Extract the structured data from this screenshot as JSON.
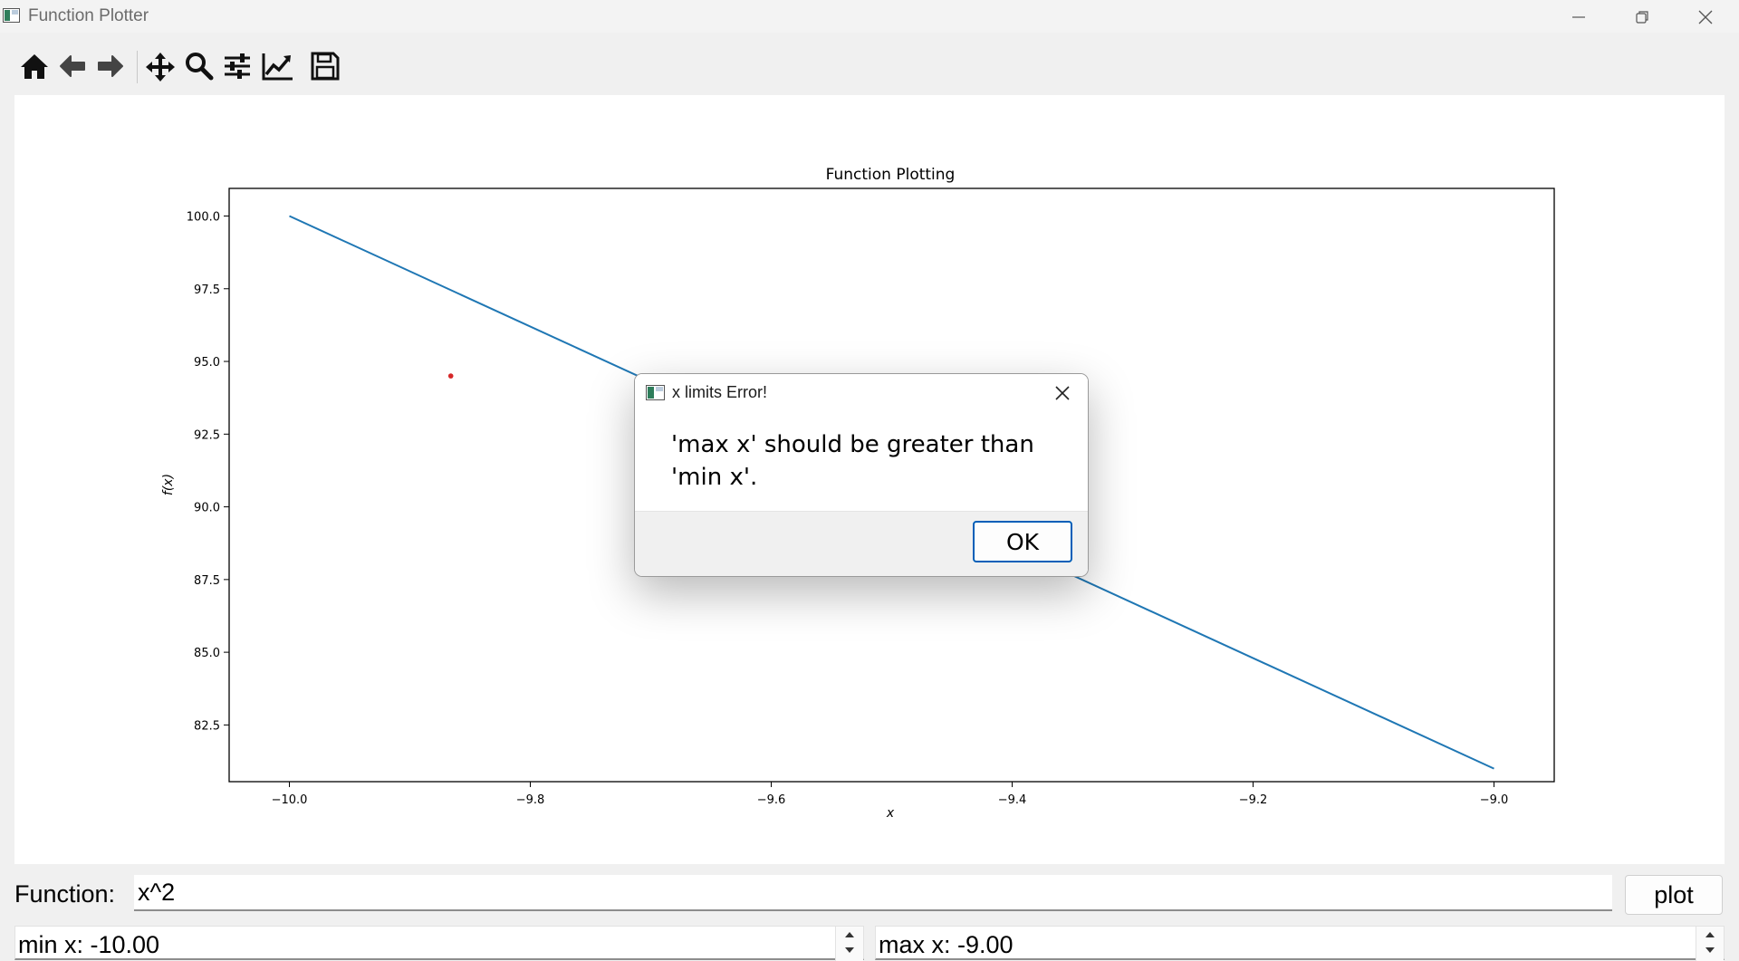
{
  "window": {
    "title": "Function Plotter",
    "controls": [
      "minimize-icon",
      "restore-icon",
      "close-icon"
    ]
  },
  "toolbar": {
    "buttons": [
      {
        "name": "home",
        "icon": "home-icon"
      },
      {
        "name": "back",
        "icon": "arrow-left-icon"
      },
      {
        "name": "forward",
        "icon": "arrow-right-icon"
      },
      {
        "name": "pan",
        "icon": "move-icon"
      },
      {
        "name": "zoom",
        "icon": "magnifier-icon"
      },
      {
        "name": "configure-subplots",
        "icon": "sliders-icon"
      },
      {
        "name": "edit-axes",
        "icon": "line-chart-icon"
      },
      {
        "name": "save",
        "icon": "floppy-disk-icon"
      }
    ]
  },
  "chart_data": {
    "type": "line",
    "title": "Function Plotting",
    "xlabel": "x",
    "ylabel": "f(x)",
    "xlim": [
      -10.05,
      -8.95
    ],
    "ylim": [
      80.55,
      100.95
    ],
    "x": [
      -10.0,
      -9.0
    ],
    "y": [
      100.0,
      81.0
    ],
    "series_color": "#1f77b4",
    "xticks": [
      -10.0,
      -9.8,
      -9.6,
      -9.4,
      -9.2,
      -9.0
    ],
    "xtick_labels": [
      "−10.0",
      "−9.8",
      "−9.6",
      "−9.4",
      "−9.2",
      "−9.0"
    ],
    "yticks": [
      82.5,
      85.0,
      87.5,
      90.0,
      92.5,
      95.0,
      97.5,
      100.0
    ],
    "ytick_labels": [
      "82.5",
      "85.0",
      "87.5",
      "90.0",
      "92.5",
      "95.0",
      "97.5",
      "100.0"
    ],
    "grid": false,
    "marker_point": {
      "x": -9.866,
      "y": 94.5,
      "color": "#d62728"
    }
  },
  "controls": {
    "function_label": "Function:",
    "function_value": "x^2",
    "plot_label": "plot",
    "min_x_text": "min x: -10.00",
    "max_x_text": "max x: -9.00"
  },
  "dialog": {
    "title": "x limits Error!",
    "message": "'max x' should be greater than 'min x'.",
    "ok_label": "OK",
    "accent": "#005fb8"
  }
}
